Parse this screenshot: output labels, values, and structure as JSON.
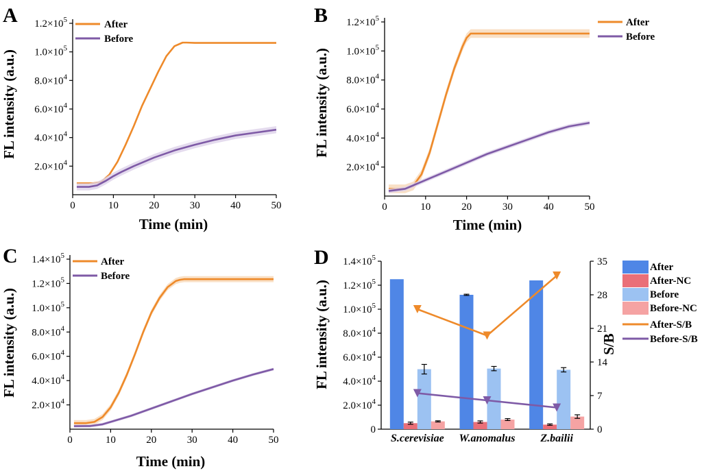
{
  "colors": {
    "after": "#ee8a2a",
    "before": "#7e5aa6",
    "bar_after": "#4f86e6",
    "bar_after_nc": "#ea6f78",
    "bar_before": "#9cc2f2",
    "bar_before_nc": "#f5a3a3",
    "after_band": "#f7d8b8",
    "before_band": "#ddd2ea"
  },
  "chart_data": [
    {
      "panel": "A",
      "type": "line",
      "xlabel": "Time (min)",
      "ylabel": "FL intensity (a.u.)",
      "xlim": [
        0,
        50
      ],
      "ylim": [
        0,
        120000
      ],
      "x_ticks": [
        "0",
        "10",
        "20",
        "30",
        "40",
        "50"
      ],
      "y_ticks": [
        {
          "value": 20000,
          "mant": "2.0×10",
          "exp": "4"
        },
        {
          "value": 40000,
          "mant": "4.0×10",
          "exp": "4"
        },
        {
          "value": 60000,
          "mant": "6.0×10",
          "exp": "4"
        },
        {
          "value": 80000,
          "mant": "8.0×10",
          "exp": "4"
        },
        {
          "value": 100000,
          "mant": "1.0×10",
          "exp": "5"
        },
        {
          "value": 120000,
          "mant": "1.2×10",
          "exp": "5"
        }
      ],
      "legend": [
        "After",
        "Before"
      ],
      "series": [
        {
          "name": "After",
          "band": 0,
          "x": [
            1,
            5,
            7,
            9,
            11,
            13,
            15,
            17,
            19,
            21,
            23,
            25,
            27,
            28,
            30,
            35,
            40,
            45,
            50
          ],
          "y": [
            8000,
            8000,
            9000,
            14000,
            23000,
            35000,
            48000,
            62000,
            74000,
            86000,
            97000,
            104000,
            106500,
            106500,
            106300,
            106300,
            106300,
            106300,
            106300
          ]
        },
        {
          "name": "Before",
          "band": 2500,
          "x": [
            1,
            4,
            6,
            8,
            10,
            12,
            15,
            20,
            25,
            30,
            35,
            40,
            45,
            50
          ],
          "y": [
            5500,
            5500,
            6500,
            9500,
            13000,
            16000,
            20000,
            26000,
            31000,
            35000,
            38500,
            41500,
            43500,
            45500
          ]
        }
      ]
    },
    {
      "panel": "B",
      "type": "line",
      "xlabel": "Time (min)",
      "ylabel": "FL intensity (a.u.)",
      "xlim": [
        0,
        50
      ],
      "ylim": [
        0,
        120000
      ],
      "x_ticks": [
        "0",
        "10",
        "20",
        "30",
        "40",
        "50"
      ],
      "y_ticks": [
        {
          "value": 20000,
          "mant": "2.0×10",
          "exp": "4"
        },
        {
          "value": 40000,
          "mant": "4.0×10",
          "exp": "4"
        },
        {
          "value": 60000,
          "mant": "6.0×10",
          "exp": "4"
        },
        {
          "value": 80000,
          "mant": "8.0×10",
          "exp": "4"
        },
        {
          "value": 100000,
          "mant": "1.0×10",
          "exp": "5"
        },
        {
          "value": 120000,
          "mant": "1.2×10",
          "exp": "5"
        }
      ],
      "legend": [
        "After",
        "Before"
      ],
      "series": [
        {
          "name": "After",
          "band": 3000,
          "x": [
            1,
            5,
            7,
            9,
            11,
            13,
            15,
            17,
            19,
            20,
            21,
            22,
            25,
            30,
            40,
            50
          ],
          "y": [
            5000,
            5000,
            7000,
            15000,
            30000,
            50000,
            70000,
            88000,
            103000,
            109000,
            112000,
            112000,
            112000,
            112000,
            112000,
            112000
          ]
        },
        {
          "name": "Before",
          "band": 1500,
          "x": [
            1,
            5,
            10,
            15,
            20,
            25,
            30,
            35,
            40,
            45,
            50
          ],
          "y": [
            3500,
            5000,
            11000,
            17000,
            23000,
            29000,
            34000,
            39000,
            44000,
            48000,
            50500
          ]
        }
      ]
    },
    {
      "panel": "C",
      "type": "line",
      "xlabel": "Time (min)",
      "ylabel": "FL intensity (a.u.)",
      "xlim": [
        0,
        50
      ],
      "ylim": [
        0,
        140000
      ],
      "x_ticks": [
        "0",
        "10",
        "20",
        "30",
        "40",
        "50"
      ],
      "y_ticks": [
        {
          "value": 20000,
          "mant": "2.0×10",
          "exp": "4"
        },
        {
          "value": 40000,
          "mant": "4.0×10",
          "exp": "4"
        },
        {
          "value": 60000,
          "mant": "6.0×10",
          "exp": "4"
        },
        {
          "value": 80000,
          "mant": "8.0×10",
          "exp": "4"
        },
        {
          "value": 100000,
          "mant": "1.0×10",
          "exp": "5"
        },
        {
          "value": 120000,
          "mant": "1.2×10",
          "exp": "5"
        },
        {
          "value": 140000,
          "mant": "1.4×10",
          "exp": "5"
        }
      ],
      "legend": [
        "After",
        "Before"
      ],
      "series": [
        {
          "name": "After",
          "band": 2500,
          "x": [
            1,
            4,
            6,
            8,
            10,
            12,
            14,
            16,
            18,
            20,
            22,
            24,
            26,
            27,
            28,
            30,
            40,
            50
          ],
          "y": [
            5000,
            5000,
            6000,
            10000,
            18000,
            30000,
            45000,
            62000,
            80000,
            96000,
            108000,
            117000,
            122000,
            123000,
            123500,
            123500,
            123500,
            123500
          ]
        },
        {
          "name": "Before",
          "band": 1200,
          "x": [
            1,
            5,
            8,
            10,
            15,
            20,
            25,
            30,
            35,
            40,
            45,
            50
          ],
          "y": [
            2500,
            2600,
            4000,
            6000,
            11000,
            17000,
            23000,
            29000,
            34500,
            40000,
            45000,
            49500
          ]
        }
      ]
    },
    {
      "panel": "D",
      "type": "bar",
      "ylabel": "FL intensity (a.u.)",
      "y2label": "S/B",
      "ylim": [
        0,
        140000
      ],
      "y2lim": [
        0,
        35
      ],
      "y_ticks": [
        {
          "value": 0,
          "mant": "0",
          "exp": ""
        },
        {
          "value": 20000,
          "mant": "2.0×10",
          "exp": "4"
        },
        {
          "value": 40000,
          "mant": "4.0×10",
          "exp": "4"
        },
        {
          "value": 60000,
          "mant": "6.0×10",
          "exp": "4"
        },
        {
          "value": 80000,
          "mant": "8.0×10",
          "exp": "4"
        },
        {
          "value": 100000,
          "mant": "1.0×10",
          "exp": "5"
        },
        {
          "value": 120000,
          "mant": "1.2×10",
          "exp": "5"
        },
        {
          "value": 140000,
          "mant": "1.4×10",
          "exp": "5"
        }
      ],
      "y2_ticks": [
        "0",
        "7",
        "14",
        "21",
        "28",
        "35"
      ],
      "categories": [
        "S.cerevisiae",
        "W.anomalus",
        "Z.bailii"
      ],
      "series": [
        {
          "name": "After",
          "values": [
            125000,
            112000,
            124000
          ],
          "err": [
            0,
            500,
            0
          ]
        },
        {
          "name": "After-NC",
          "values": [
            5000,
            6000,
            3800
          ],
          "err": [
            900,
            900,
            600
          ]
        },
        {
          "name": "Before",
          "values": [
            50000,
            50500,
            49500
          ],
          "err": [
            4000,
            1800,
            1800
          ]
        },
        {
          "name": "Before-NC",
          "values": [
            6500,
            8000,
            10500
          ],
          "err": [
            500,
            800,
            1500
          ]
        }
      ],
      "lines": [
        {
          "name": "After-S/B",
          "values": [
            25,
            19.5,
            32
          ]
        },
        {
          "name": "Before-S/B",
          "values": [
            7.5,
            6,
            4.5
          ]
        }
      ],
      "legend": [
        "After",
        "After-NC",
        "Before",
        "Before-NC",
        "After-S/B",
        "Before-S/B"
      ]
    }
  ]
}
